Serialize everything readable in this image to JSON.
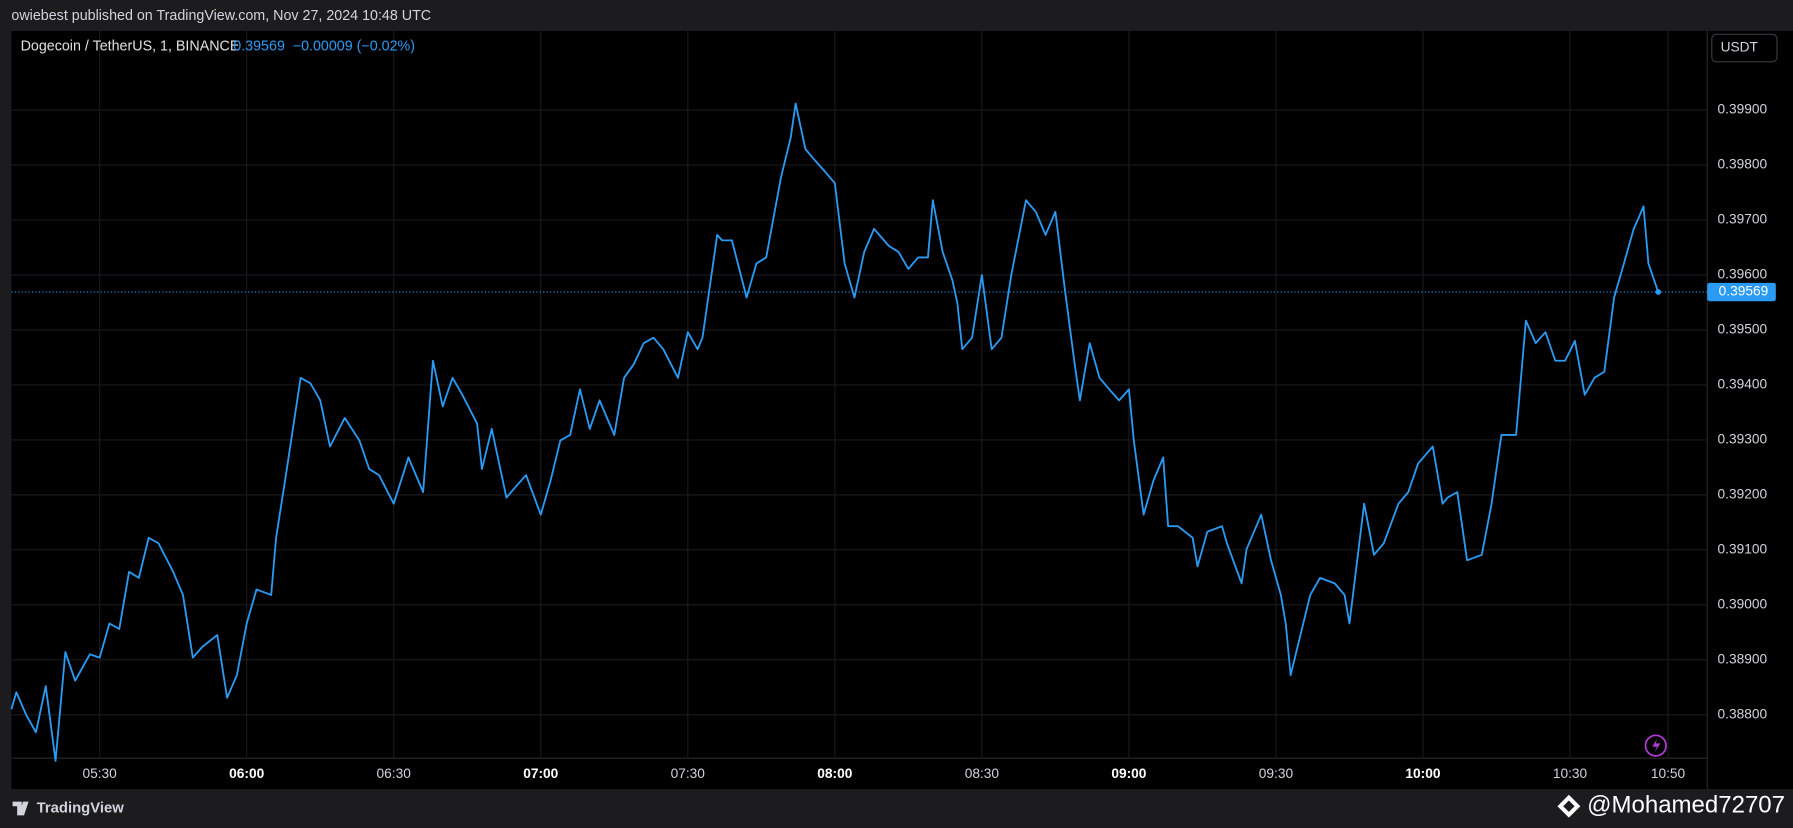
{
  "header": {
    "text": "owiebest published on TradingView.com, Nov 27, 2024 10:48 UTC"
  },
  "chart_data": {
    "type": "line",
    "title": "Dogecoin / TetherUS, 1, BINANCE",
    "change": "−0.00009 (−0.02%)",
    "y_unit": "USDT",
    "x": [
      "05:12",
      "05:13",
      "05:15",
      "05:17",
      "05:19",
      "05:21",
      "05:23",
      "05:25",
      "05:28",
      "05:30",
      "05:32",
      "05:34",
      "05:36",
      "05:38",
      "05:40",
      "05:42",
      "05:45",
      "05:47",
      "05:49",
      "05:51",
      "05:54",
      "05:56",
      "05:58",
      "06:00",
      "06:02",
      "06:05",
      "06:06",
      "06:08",
      "06:11",
      "06:13",
      "06:15",
      "06:17",
      "06:20",
      "06:23",
      "06:25",
      "06:27",
      "06:30",
      "06:33",
      "06:36",
      "06:38",
      "06:40",
      "06:42",
      "06:44",
      "06:47",
      "06:48",
      "06:50",
      "06:53",
      "06:55",
      "06:57",
      "07:00",
      "07:02",
      "07:04",
      "07:06",
      "07:08",
      "07:10",
      "07:12",
      "07:15",
      "07:17",
      "07:19",
      "07:21",
      "07:23",
      "07:25",
      "07:28",
      "07:30",
      "07:32",
      "07:33",
      "07:36",
      "07:37",
      "07:39",
      "07:42",
      "07:44",
      "07:46",
      "07:49",
      "07:51",
      "07:52",
      "07:54",
      "07:56",
      "07:58",
      "08:00",
      "08:02",
      "08:04",
      "08:06",
      "08:08",
      "08:11",
      "08:13",
      "08:15",
      "08:17",
      "08:19",
      "08:20",
      "08:22",
      "08:24",
      "08:25",
      "08:26",
      "08:28",
      "08:30",
      "08:32",
      "08:34",
      "08:36",
      "08:39",
      "08:41",
      "08:43",
      "08:45",
      "08:47",
      "08:49",
      "08:50",
      "08:52",
      "08:54",
      "08:56",
      "08:58",
      "09:00",
      "09:01",
      "09:03",
      "09:05",
      "09:07",
      "09:08",
      "09:10",
      "09:13",
      "09:14",
      "09:16",
      "09:19",
      "09:20",
      "09:23",
      "09:24",
      "09:27",
      "09:29",
      "09:31",
      "09:32",
      "09:33",
      "09:35",
      "09:37",
      "09:39",
      "09:42",
      "09:44",
      "09:45",
      "09:48",
      "09:50",
      "09:52",
      "09:55",
      "09:57",
      "09:59",
      "10:02",
      "10:04",
      "10:05",
      "10:07",
      "10:09",
      "10:12",
      "10:14",
      "10:16",
      "10:19",
      "10:21",
      "10:23",
      "10:25",
      "10:27",
      "10:29",
      "10:31",
      "10:33",
      "10:35",
      "10:37",
      "10:39",
      "10:41",
      "10:43",
      "10:44",
      "10:45",
      "10:46",
      "10:48"
    ],
    "series": [
      {
        "name": "DOGEUSDT",
        "color": "#2a9af3",
        "values": [
          0.3881,
          0.38841,
          0.388,
          0.38768,
          0.38852,
          0.38716,
          0.38914,
          0.38862,
          0.3891,
          0.38904,
          0.38966,
          0.38956,
          0.3906,
          0.39049,
          0.39122,
          0.39112,
          0.3906,
          0.39018,
          0.38904,
          0.38924,
          0.38945,
          0.38831,
          0.38872,
          0.38966,
          0.39028,
          0.39018,
          0.39122,
          0.39236,
          0.39413,
          0.39403,
          0.39372,
          0.39288,
          0.3934,
          0.39299,
          0.39247,
          0.39236,
          0.39184,
          0.39268,
          0.39205,
          0.39444,
          0.39361,
          0.39413,
          0.39382,
          0.3933,
          0.39247,
          0.3932,
          0.39195,
          0.39216,
          0.39236,
          0.39164,
          0.39226,
          0.39299,
          0.39309,
          0.39392,
          0.3932,
          0.39372,
          0.39309,
          0.39413,
          0.39438,
          0.39476,
          0.39486,
          0.39465,
          0.39413,
          0.39496,
          0.39465,
          0.39486,
          0.39673,
          0.39663,
          0.39663,
          0.39559,
          0.39621,
          0.39632,
          0.39777,
          0.3985,
          0.39912,
          0.39829,
          0.39808,
          0.39788,
          0.39767,
          0.39621,
          0.39559,
          0.39642,
          0.39684,
          0.39653,
          0.39642,
          0.39611,
          0.39632,
          0.39632,
          0.39736,
          0.39642,
          0.3959,
          0.39549,
          0.39465,
          0.39486,
          0.396,
          0.39465,
          0.39486,
          0.396,
          0.39736,
          0.39715,
          0.39673,
          0.39715,
          0.39569,
          0.39434,
          0.39372,
          0.39476,
          0.39413,
          0.39392,
          0.39372,
          0.39392,
          0.39299,
          0.39164,
          0.39226,
          0.39268,
          0.39143,
          0.39143,
          0.39122,
          0.3907,
          0.39133,
          0.39143,
          0.39112,
          0.39039,
          0.39101,
          0.39164,
          0.39081,
          0.39018,
          0.38966,
          0.38872,
          0.38945,
          0.39018,
          0.39049,
          0.39039,
          0.39018,
          0.38966,
          0.39184,
          0.39091,
          0.39112,
          0.39184,
          0.39205,
          0.39257,
          0.39288,
          0.39184,
          0.39195,
          0.39205,
          0.39081,
          0.39091,
          0.39184,
          0.39309,
          0.39309,
          0.39517,
          0.39476,
          0.39496,
          0.39444,
          0.39444,
          0.3948,
          0.39382,
          0.39413,
          0.39424,
          0.39559,
          0.39621,
          0.39684,
          0.39704,
          0.39725,
          0.39621,
          0.39569
        ]
      }
    ],
    "xlim": [
      "05:12",
      "10:58"
    ],
    "xticks": [
      "05:30",
      "06:00",
      "06:30",
      "07:00",
      "07:30",
      "08:00",
      "08:30",
      "09:00",
      "09:30",
      "10:00",
      "10:30",
      "10:50"
    ],
    "ylim": [
      0.38721,
      0.40044
    ],
    "yticks": [
      {
        "value": 0.388,
        "label": "0.38800"
      },
      {
        "value": 0.389,
        "label": "0.38900"
      },
      {
        "value": 0.39,
        "label": "0.39000"
      },
      {
        "value": 0.391,
        "label": "0.39100"
      },
      {
        "value": 0.392,
        "label": "0.39200"
      },
      {
        "value": 0.393,
        "label": "0.39300"
      },
      {
        "value": 0.394,
        "label": "0.39400"
      },
      {
        "value": 0.395,
        "label": "0.39500"
      },
      {
        "value": 0.396,
        "label": "0.39600"
      },
      {
        "value": 0.397,
        "label": "0.39700"
      },
      {
        "value": 0.398,
        "label": "0.39800"
      },
      {
        "value": 0.399,
        "label": "0.39900"
      }
    ],
    "grid": true
  },
  "footer": {
    "brand": "TradingView",
    "watermark": "@Mohamed72707"
  }
}
